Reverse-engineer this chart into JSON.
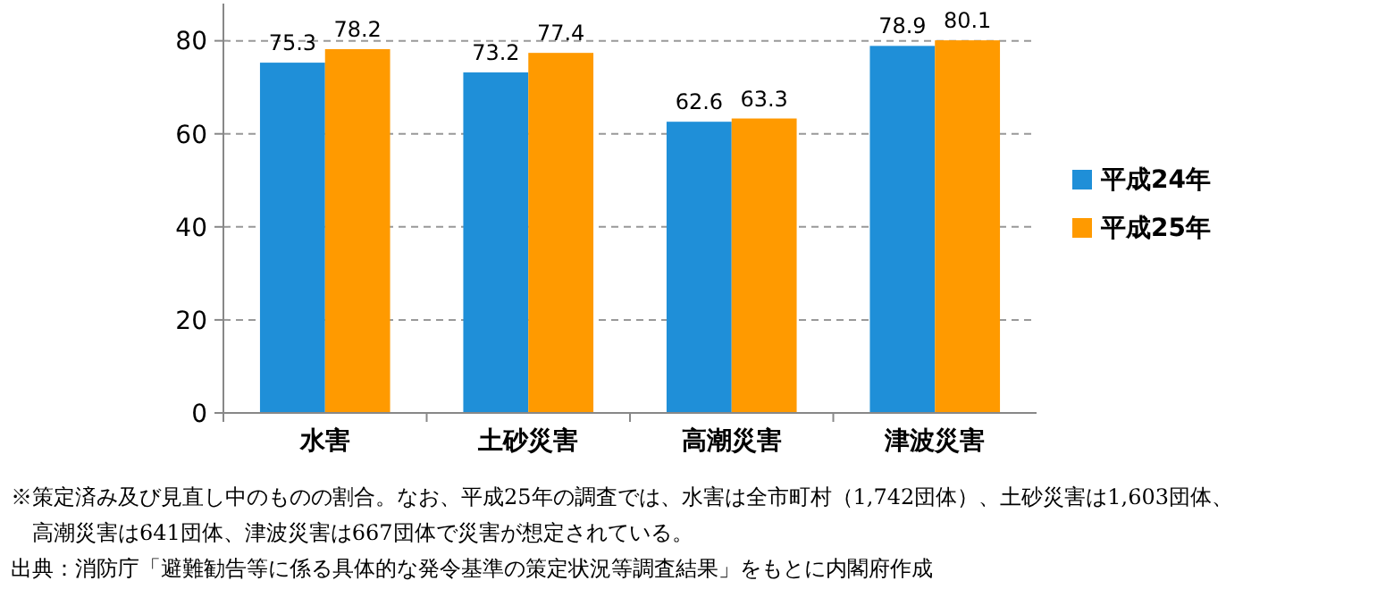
{
  "chart_data": {
    "type": "bar",
    "categories": [
      "水害",
      "土砂災害",
      "高潮災害",
      "津波災害"
    ],
    "series": [
      {
        "name": "平成24年",
        "color": "#1f8fd8",
        "values": [
          75.3,
          73.2,
          62.6,
          78.9
        ]
      },
      {
        "name": "平成25年",
        "color": "#ff9a00",
        "values": [
          78.2,
          77.4,
          63.3,
          80.1
        ]
      }
    ],
    "ylim": [
      0,
      88
    ],
    "yticks": [
      0,
      20,
      40,
      60,
      80
    ],
    "grid": "y",
    "legend": "right",
    "data_labels": true,
    "annotations": [
      "※策定済み及び見直し中のものの割合。なお、平成25年の調査では、水害は全市町村（1,742団体）、土砂災害は1,603団体、",
      "　高潮災害は641団体、津波災害は667団体で災害が想定されている。",
      "出典：消防庁「避難勧告等に係る具体的な発令基準の策定状況等調査結果」をもとに内閣府作成"
    ]
  }
}
